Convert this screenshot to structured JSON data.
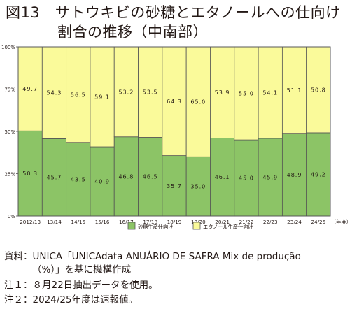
{
  "title": {
    "line1": "図13　サトウキビの砂糖とエタノールへの仕向け",
    "line2": "割合の推移（中南部）"
  },
  "notes": {
    "source": "資料：UNICA「UNICAdata ANUÁRIO DE SAFRA Mix de produção",
    "source_cont": "（%）」を基に機構作成",
    "note1": "注１：８月22日抽出データを使用。",
    "note2": "注２：2024/25年度は速報値。"
  },
  "chart_data": {
    "type": "bar",
    "stacked": true,
    "percent_stacked": true,
    "categories": [
      "2012/13",
      "13/14",
      "14/15",
      "15/16",
      "16/17",
      "17/18",
      "18/19",
      "19/20",
      "20/21",
      "21/22",
      "22/23",
      "23/24",
      "24/25"
    ],
    "series": [
      {
        "name": "砂糖生産仕向け",
        "color": "#8cc466",
        "values": [
          50.3,
          45.7,
          43.5,
          40.9,
          46.8,
          46.5,
          35.7,
          35.0,
          46.1,
          45.0,
          45.9,
          48.9,
          49.2
        ]
      },
      {
        "name": "エタノール生産仕向け",
        "color": "#fafa9a",
        "values": [
          49.7,
          54.3,
          56.5,
          59.1,
          53.2,
          53.5,
          64.3,
          65.0,
          53.9,
          55.0,
          54.1,
          51.1,
          50.8
        ]
      }
    ],
    "ylim": [
      0,
      100
    ],
    "yticks": [
      "0%",
      "25%",
      "50%",
      "75%",
      "100%"
    ],
    "x_unit": "（年度）",
    "gridlines": true,
    "legend_position": "bottom-center"
  }
}
